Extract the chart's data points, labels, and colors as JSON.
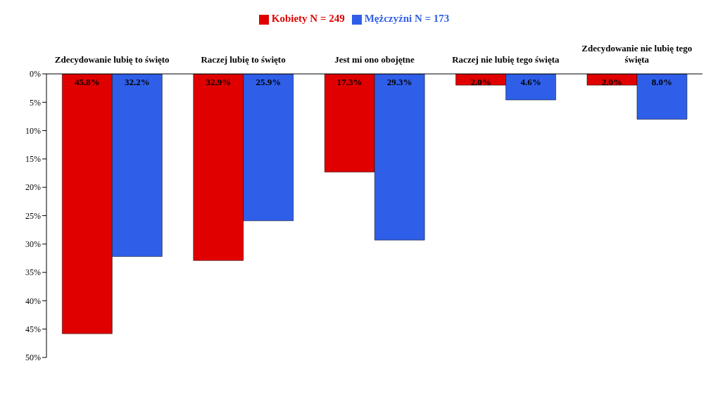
{
  "chart_data": {
    "type": "bar",
    "categories": [
      "Zdecydowanie lubię to święto",
      "Raczej lubię to święto",
      "Jest mi ono obojętne",
      "Raczej nie lubię tego święta",
      "Zdecydowanie nie lubię tego święta"
    ],
    "series": [
      {
        "name": "Kobiety N = 249",
        "color": "#e00000",
        "values": [
          45.8,
          32.9,
          17.3,
          2.0,
          2.0
        ],
        "value_labels": [
          "45.8%",
          "32.9%",
          "17.3%",
          "2.0%",
          "2.0%"
        ]
      },
      {
        "name": "Mężczyźni N = 173",
        "color": "#2f5fe8",
        "values": [
          32.2,
          25.9,
          29.3,
          4.6,
          8.0
        ],
        "value_labels": [
          "32.2%",
          "25.9%",
          "29.3%",
          "4.6%",
          "8.0%"
        ]
      }
    ],
    "ylim": [
      50,
      0
    ],
    "yticks": [
      {
        "value": 0,
        "label": "0%"
      },
      {
        "value": 5,
        "label": "5%"
      },
      {
        "value": 10,
        "label": "10%"
      },
      {
        "value": 15,
        "label": "15%"
      },
      {
        "value": 20,
        "label": "20%"
      },
      {
        "value": 25,
        "label": "25%"
      },
      {
        "value": 30,
        "label": "30%"
      },
      {
        "value": 35,
        "label": "35%"
      },
      {
        "value": 40,
        "label": "40%"
      },
      {
        "value": 45,
        "label": "45%"
      },
      {
        "value": 50,
        "label": "50%"
      }
    ],
    "grid": false,
    "legend": "top"
  }
}
